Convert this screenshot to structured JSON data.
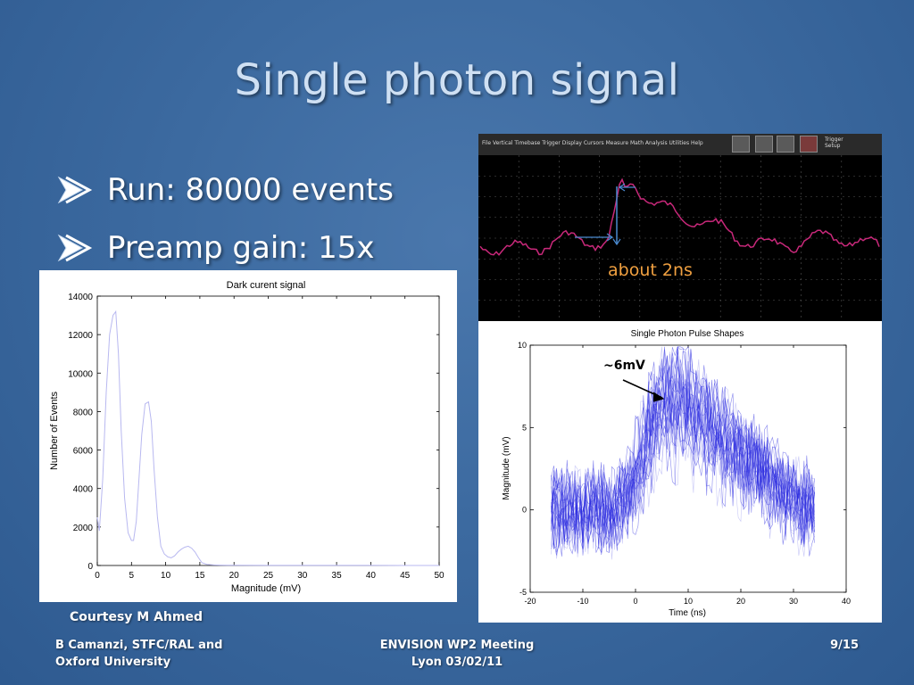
{
  "slide": {
    "title": "Single photon signal",
    "bullets": [
      "Run: 80000 events",
      "Preamp gain: 15x"
    ],
    "courtesy": "Courtesy M Ahmed",
    "footer": {
      "left_line1": "B Camanzi, STFC/RAL and",
      "left_line2": "Oxford University",
      "center_line1": "ENVISION WP2 Meeting",
      "center_line2": "Lyon 03/02/11",
      "page": "9/15"
    },
    "colors": {
      "background": "#3c6aa0",
      "title": "#cfe0f3",
      "annotation_orange": "#f0a040",
      "trace_magenta": "#c8287a",
      "pulse_blue": "#2828e0"
    }
  },
  "scope": {
    "menu": "File  Vertical  Timebase  Trigger  Display  Cursors  Measure  Math  Analysis  Utilities  Help",
    "trigger_label_1": "Trigger",
    "trigger_label_2": "Setup",
    "annotation": "about 2ns"
  },
  "chart_data": [
    {
      "type": "line",
      "title": "Dark curent signal",
      "xlabel": "Magnitude (mV)",
      "ylabel": "Number of Events",
      "xlim": [
        0,
        50
      ],
      "ylim": [
        0,
        14000
      ],
      "xticks": [
        "0",
        "5",
        "10",
        "15",
        "20",
        "25",
        "30",
        "35",
        "40",
        "45",
        "50"
      ],
      "yticks": [
        "0",
        "2000",
        "4000",
        "6000",
        "8000",
        "10000",
        "12000",
        "14000"
      ],
      "x": [
        0,
        0.3,
        0.8,
        1.3,
        1.8,
        2.3,
        2.7,
        3.1,
        3.5,
        4.0,
        4.5,
        5.0,
        5.3,
        5.7,
        6.1,
        6.5,
        7.0,
        7.5,
        7.9,
        8.3,
        8.8,
        9.3,
        9.8,
        10.3,
        10.8,
        11.3,
        11.8,
        12.3,
        12.8,
        13.3,
        13.8,
        14.3,
        14.8,
        15.3,
        16.0,
        17.0,
        18.0,
        20.0,
        25.0,
        30.0,
        35.0,
        40.0,
        45.0,
        50.0
      ],
      "y": [
        2500,
        1800,
        4500,
        9000,
        12000,
        13000,
        13200,
        11000,
        7000,
        3500,
        1700,
        1300,
        1300,
        2300,
        4500,
        6800,
        8400,
        8500,
        7500,
        5000,
        2500,
        1000,
        600,
        450,
        400,
        500,
        700,
        850,
        950,
        1000,
        900,
        700,
        400,
        150,
        60,
        30,
        20,
        10,
        5,
        5,
        5,
        5,
        0,
        0
      ]
    },
    {
      "type": "line",
      "title": "Single Photon Pulse Shapes",
      "xlabel": "Time (ns)",
      "ylabel": "Magnitude (mV)",
      "xlim": [
        -20,
        40
      ],
      "ylim": [
        -5,
        10
      ],
      "xticks": [
        "-20",
        "-10",
        "0",
        "10",
        "20",
        "30",
        "40"
      ],
      "yticks": [
        "-5",
        "0",
        "5",
        "10"
      ],
      "annotation": "~6mV",
      "mean_pulse": {
        "x": [
          -16,
          -4,
          -2,
          0,
          2,
          4,
          6,
          8,
          10,
          12,
          14,
          16,
          18,
          20,
          22,
          24,
          26,
          28,
          30,
          32,
          34
        ],
        "y": [
          0,
          0,
          0.3,
          1.5,
          3.5,
          5.3,
          6,
          6,
          5.6,
          5,
          4.5,
          4,
          3.5,
          3,
          2.5,
          2,
          1.5,
          1,
          0.5,
          0.2,
          0
        ]
      },
      "trace_count": 28
    }
  ]
}
